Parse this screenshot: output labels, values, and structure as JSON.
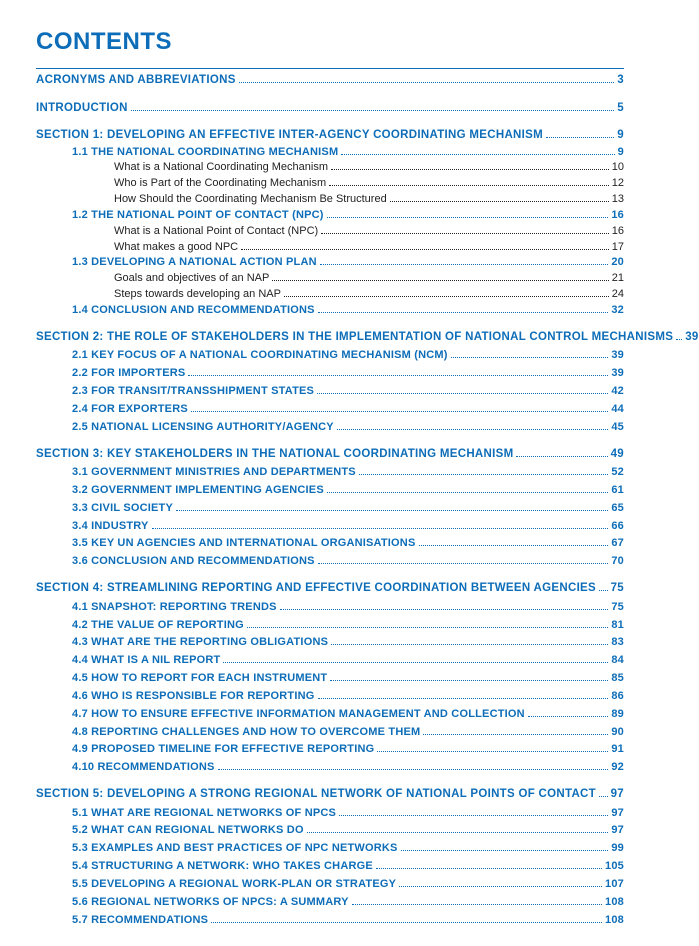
{
  "title": "CONTENTS",
  "colors": {
    "accent": "#0d6db8",
    "text": "#222"
  },
  "entries": [
    {
      "lvl": 0,
      "tight": true,
      "label": "ACRONYMS AND ABBREVIATIONS",
      "page": "3"
    },
    {
      "lvl": 0,
      "label": "INTRODUCTION",
      "page": "5"
    },
    {
      "lvl": 0,
      "label": "SECTION 1: DEVELOPING AN EFFECTIVE INTER-AGENCY COORDINATING MECHANISM",
      "page": "9"
    },
    {
      "lvl": 1,
      "label": "1.1 THE NATIONAL COORDINATING MECHANISM",
      "page": "9"
    },
    {
      "lvl": 2,
      "label": "What is a National Coordinating Mechanism",
      "page": "10"
    },
    {
      "lvl": 2,
      "label": "Who is Part of the Coordinating Mechanism",
      "page": "12"
    },
    {
      "lvl": 2,
      "label": "How Should the Coordinating Mechanism Be Structured",
      "page": "13"
    },
    {
      "lvl": 1,
      "label": "1.2 THE NATIONAL POINT OF CONTACT (NPC)",
      "page": "16"
    },
    {
      "lvl": 2,
      "label": "What is a National Point of Contact (NPC)",
      "page": "16"
    },
    {
      "lvl": 2,
      "label": "What makes a good NPC",
      "page": "17"
    },
    {
      "lvl": 1,
      "label": "1.3 DEVELOPING A NATIONAL ACTION PLAN",
      "page": "20"
    },
    {
      "lvl": 2,
      "label": "Goals and objectives of an NAP",
      "page": "21"
    },
    {
      "lvl": 2,
      "label": "Steps towards developing an NAP",
      "page": "24"
    },
    {
      "lvl": 1,
      "label": "1.4 CONCLUSION AND RECOMMENDATIONS",
      "page": "32"
    },
    {
      "lvl": 0,
      "label": "SECTION 2: THE ROLE OF STAKEHOLDERS IN THE IMPLEMENTATION OF NATIONAL CONTROL MECHANISMS",
      "page": "39"
    },
    {
      "lvl": "1b",
      "label": "2.1 KEY FOCUS OF A NATIONAL COORDINATING MECHANISM (NCM)",
      "page": "39"
    },
    {
      "lvl": "1b",
      "label": "2.2 FOR IMPORTERS",
      "page": "39"
    },
    {
      "lvl": "1b",
      "label": "2.3 FOR TRANSIT/TRANSSHIPMENT STATES",
      "page": "42"
    },
    {
      "lvl": "1b",
      "label": "2.4 FOR EXPORTERS",
      "page": "44"
    },
    {
      "lvl": "1b",
      "label": "2.5 NATIONAL LICENSING AUTHORITY/AGENCY",
      "page": "45"
    },
    {
      "lvl": 0,
      "label": "SECTION 3: KEY STAKEHOLDERS IN THE NATIONAL COORDINATING MECHANISM",
      "page": "49"
    },
    {
      "lvl": "1b",
      "label": "3.1 GOVERNMENT MINISTRIES AND DEPARTMENTS",
      "page": "52"
    },
    {
      "lvl": "1b",
      "label": "3.2 GOVERNMENT IMPLEMENTING AGENCIES",
      "page": "61"
    },
    {
      "lvl": "1b",
      "label": "3.3 CIVIL SOCIETY",
      "page": "65"
    },
    {
      "lvl": "1b",
      "label": "3.4 INDUSTRY",
      "page": "66"
    },
    {
      "lvl": "1b",
      "label": "3.5 KEY UN AGENCIES AND INTERNATIONAL ORGANISATIONS",
      "page": "67"
    },
    {
      "lvl": "1b",
      "label": "3.6 CONCLUSION AND RECOMMENDATIONS",
      "page": "70"
    },
    {
      "lvl": 0,
      "label": "SECTION 4: STREAMLINING REPORTING AND EFFECTIVE COORDINATION BETWEEN AGENCIES",
      "page": "75"
    },
    {
      "lvl": "1b",
      "label": "4.1 SNAPSHOT: REPORTING TRENDS",
      "page": "75"
    },
    {
      "lvl": "1b",
      "label": "4.2 THE VALUE OF REPORTING",
      "page": "81"
    },
    {
      "lvl": "1b",
      "label": "4.3 WHAT ARE THE REPORTING OBLIGATIONS",
      "page": "83"
    },
    {
      "lvl": "1b",
      "label": "4.4 WHAT IS A NIL REPORT",
      "page": "84"
    },
    {
      "lvl": "1b",
      "label": "4.5 HOW TO REPORT FOR EACH INSTRUMENT",
      "page": "85"
    },
    {
      "lvl": "1b",
      "label": "4.6 WHO IS RESPONSIBLE FOR REPORTING",
      "page": "86"
    },
    {
      "lvl": "1b",
      "label": "4.7 HOW TO ENSURE EFFECTIVE INFORMATION MANAGEMENT AND COLLECTION",
      "page": "89"
    },
    {
      "lvl": "1b",
      "label": "4.8 REPORTING CHALLENGES AND HOW TO OVERCOME THEM",
      "page": "90"
    },
    {
      "lvl": "1b",
      "label": "4.9 PROPOSED TIMELINE FOR EFFECTIVE REPORTING",
      "page": "91"
    },
    {
      "lvl": "1b",
      "label": "4.10 RECOMMENDATIONS",
      "page": "92"
    },
    {
      "lvl": 0,
      "label": "SECTION 5: DEVELOPING A STRONG REGIONAL NETWORK OF NATIONAL POINTS OF CONTACT",
      "page": "97"
    },
    {
      "lvl": "1b",
      "label": "5.1 WHAT ARE REGIONAL NETWORKS OF NPCS",
      "page": "97"
    },
    {
      "lvl": "1b",
      "label": "5.2 WHAT CAN REGIONAL NETWORKS DO",
      "page": "97"
    },
    {
      "lvl": "1b",
      "label": "5.3 EXAMPLES AND BEST PRACTICES OF NPC NETWORKS",
      "page": "99"
    },
    {
      "lvl": "1b",
      "label": "5.4 STRUCTURING A NETWORK: WHO TAKES CHARGE",
      "page": "105"
    },
    {
      "lvl": "1b",
      "label": "5.5 DEVELOPING A REGIONAL WORK-PLAN OR STRATEGY",
      "page": "107"
    },
    {
      "lvl": "1b",
      "label": "5.6 REGIONAL NETWORKS OF NPCS: A SUMMARY",
      "page": "108"
    },
    {
      "lvl": "1b",
      "label": "5.7 RECOMMENDATIONS",
      "page": "108"
    }
  ]
}
